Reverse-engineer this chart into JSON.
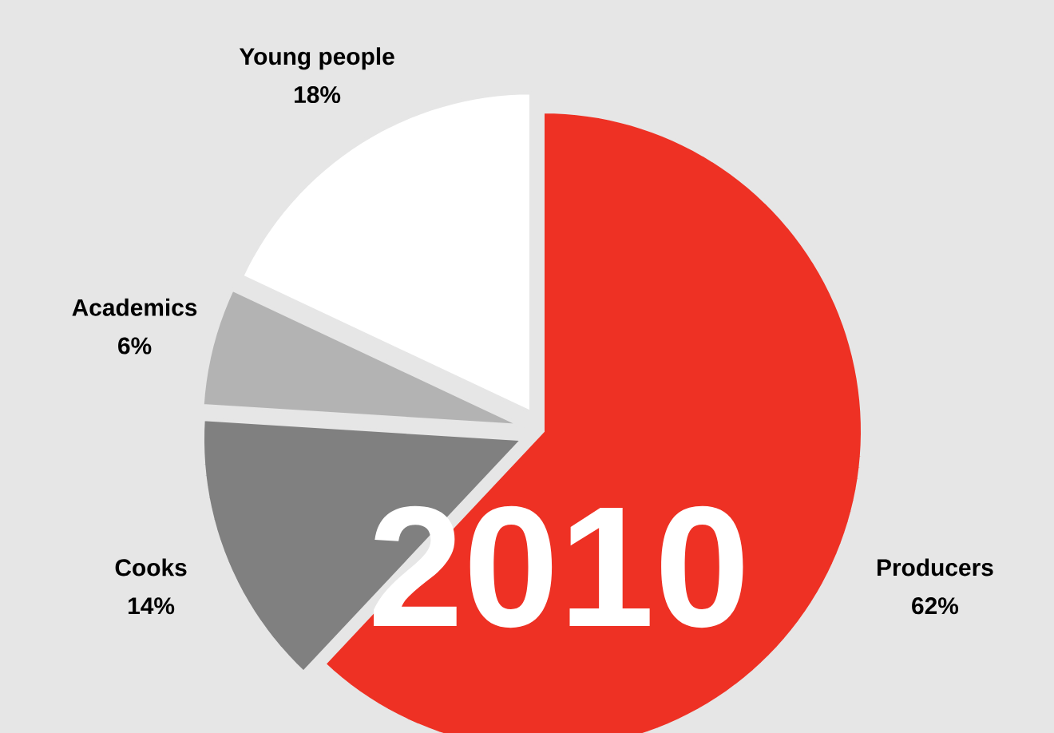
{
  "chart_data": {
    "type": "pie",
    "title": "2010",
    "categories": [
      "Producers",
      "Cooks",
      "Academics",
      "Young people"
    ],
    "values": [
      62,
      14,
      6,
      18
    ],
    "value_labels": [
      "62%",
      "14%",
      "6%",
      "18%"
    ],
    "colors": [
      "#ee3124",
      "#808080",
      "#b3b3b3",
      "#ffffff"
    ]
  }
}
